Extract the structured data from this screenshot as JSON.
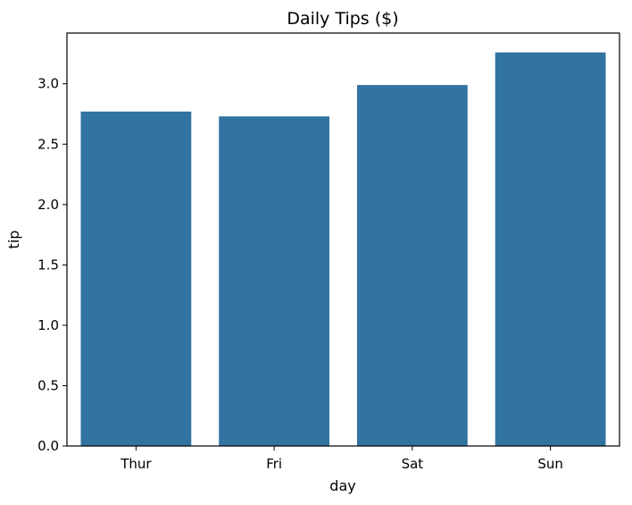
{
  "chart_data": {
    "type": "bar",
    "title": "Daily Tips ($)",
    "xlabel": "day",
    "ylabel": "tip",
    "categories": [
      "Thur",
      "Fri",
      "Sat",
      "Sun"
    ],
    "values": [
      2.77,
      2.73,
      2.99,
      3.26
    ],
    "ylim": [
      0,
      3.42
    ],
    "yticks": [
      0.0,
      0.5,
      1.0,
      1.5,
      2.0,
      2.5,
      3.0
    ],
    "ytick_labels": [
      "0.0",
      "0.5",
      "1.0",
      "1.5",
      "2.0",
      "2.5",
      "3.0"
    ],
    "bar_color": "#3274a1",
    "grid": false,
    "legend": null
  }
}
